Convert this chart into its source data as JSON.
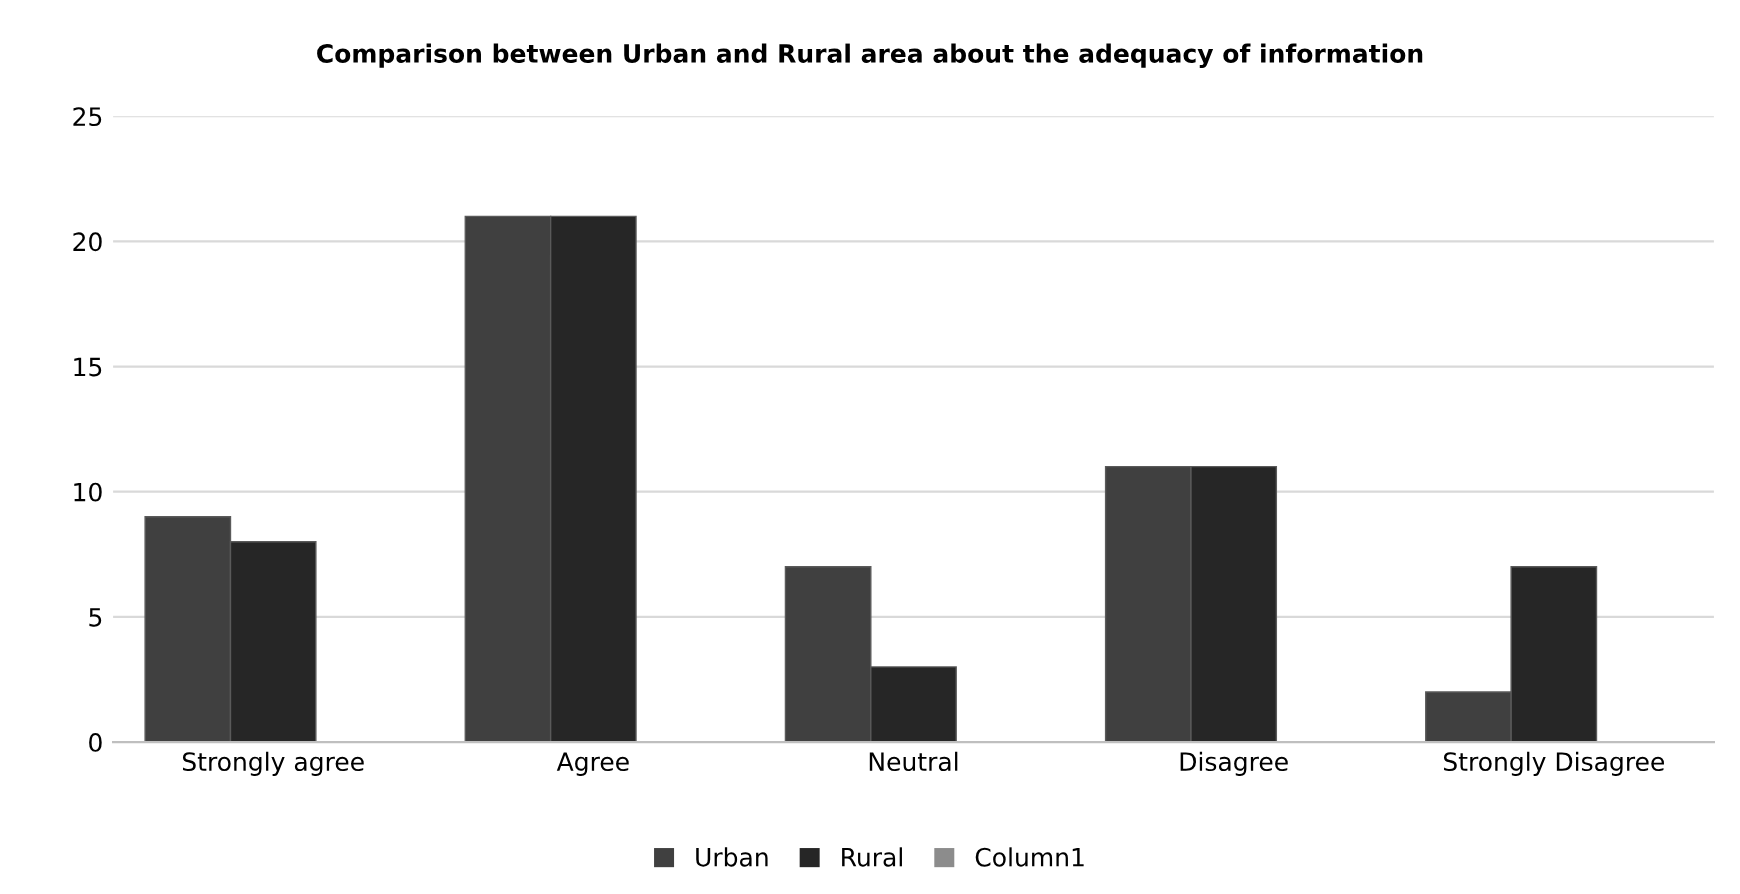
{
  "chart_data": {
    "type": "bar",
    "title": "Comparison between Urban and Rural area about the adequacy of information",
    "categories": [
      "Strongly agree",
      "Agree",
      "Neutral",
      "Disagree",
      "Strongly Disagree"
    ],
    "series": [
      {
        "name": "Urban",
        "color": "#404040",
        "values": [
          9,
          21,
          7,
          11,
          2
        ]
      },
      {
        "name": "Rural",
        "color": "#262626",
        "values": [
          8,
          21,
          3,
          11,
          7
        ]
      },
      {
        "name": "Column1",
        "color": "#8c8c8c",
        "values": [
          null,
          null,
          null,
          null,
          null
        ]
      }
    ],
    "ylim": [
      0,
      25
    ],
    "yticks": [
      0,
      5,
      10,
      15,
      20,
      25
    ],
    "grid": "y",
    "legend": "bottom"
  }
}
